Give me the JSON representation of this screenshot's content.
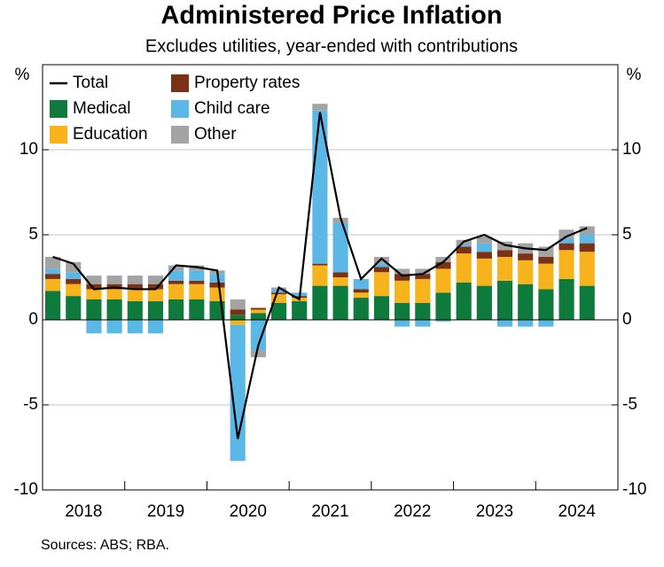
{
  "chart_data": {
    "type": "stacked-bar-line",
    "title": "Administered Price Inflation",
    "subtitle": "Excludes utilities, year-ended with contributions",
    "y_unit": "%",
    "y2_unit": "%",
    "source": "Sources: ABS; RBA.",
    "year_labels": [
      "2018",
      "2019",
      "2020",
      "2021",
      "2022",
      "2023",
      "2024"
    ],
    "categories": [
      null,
      null,
      null,
      null,
      null,
      null,
      null,
      null,
      null,
      null,
      null,
      null,
      null,
      null,
      null,
      null,
      null,
      null,
      null,
      null,
      null,
      null,
      null,
      null,
      null,
      null,
      null
    ],
    "series": [
      {
        "name": "Medical",
        "color": "#0e7a3c",
        "values": [
          1.7,
          1.4,
          1.2,
          1.2,
          1.1,
          1.1,
          1.2,
          1.2,
          1.1,
          0.3,
          0.4,
          1.0,
          1.1,
          2.0,
          2.0,
          1.3,
          1.4,
          1.0,
          1.0,
          1.6,
          2.2,
          2.0,
          2.3,
          2.1,
          1.8,
          2.4,
          2.0
        ]
      },
      {
        "name": "Education",
        "color": "#f7b31b",
        "values": [
          0.7,
          0.7,
          0.6,
          0.6,
          0.7,
          0.7,
          0.9,
          0.9,
          0.8,
          -0.3,
          0.2,
          0.5,
          0.2,
          1.2,
          0.5,
          0.3,
          1.4,
          1.3,
          1.4,
          1.4,
          1.7,
          1.6,
          1.4,
          1.4,
          1.5,
          1.7,
          2.0
        ]
      },
      {
        "name": "Property rates",
        "color": "#7a3115",
        "values": [
          0.3,
          0.3,
          0.3,
          0.3,
          0.3,
          0.3,
          0.2,
          0.2,
          0.3,
          0.3,
          0.1,
          0.1,
          0.1,
          0.1,
          0.3,
          0.2,
          0.3,
          0.4,
          0.3,
          0.4,
          0.4,
          0.4,
          0.4,
          0.4,
          0.4,
          0.4,
          0.5
        ]
      },
      {
        "name": "Child care",
        "color": "#5bb8e6",
        "values": [
          0.3,
          0.4,
          -0.8,
          -0.8,
          -0.8,
          -0.8,
          0.6,
          0.6,
          0.5,
          -8.0,
          -1.8,
          0.2,
          0.2,
          9.0,
          2.9,
          0.6,
          0.2,
          -0.4,
          -0.4,
          -0.1,
          0.1,
          0.5,
          -0.4,
          -0.4,
          -0.4,
          0.3,
          0.5
        ]
      },
      {
        "name": "Other",
        "color": "#a3a3a3",
        "values": [
          0.7,
          0.6,
          0.5,
          0.5,
          0.5,
          0.5,
          0.3,
          0.3,
          0.2,
          0.6,
          -0.4,
          0.1,
          0,
          0.4,
          0.3,
          0,
          0.4,
          0.3,
          0.3,
          0.3,
          0.3,
          0.4,
          0.5,
          0.6,
          0.6,
          0.5,
          0.5
        ]
      }
    ],
    "line_series": {
      "name": "Total",
      "color": "#000000",
      "values": [
        3.7,
        3.3,
        1.8,
        1.9,
        1.8,
        1.8,
        3.2,
        3.1,
        2.9,
        -7.0,
        -1.5,
        1.9,
        1.2,
        12.2,
        6.0,
        2.4,
        3.6,
        2.6,
        2.7,
        3.4,
        4.6,
        5.0,
        4.4,
        4.2,
        4.1,
        4.9,
        5.4
      ]
    },
    "ylim": [
      -10,
      15
    ],
    "yticks": [
      -10,
      -5,
      0,
      5,
      10
    ],
    "y2lim": [
      -10,
      15
    ],
    "y2ticks": [
      -10,
      -5,
      0,
      5,
      10
    ],
    "grid": true
  }
}
